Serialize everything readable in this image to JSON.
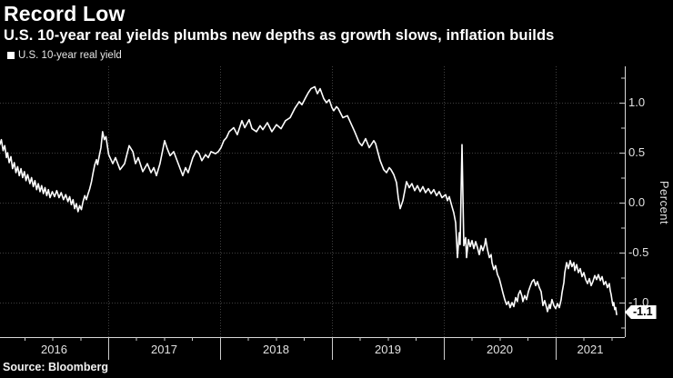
{
  "header": {
    "title": "Record Low",
    "subtitle": "U.S. 10-year real yields plumbs new depths as growth slows, inflation builds"
  },
  "legend": {
    "label": "U.S. 10-year real yield",
    "marker_color": "#ffffff"
  },
  "footer": {
    "source": "Source: Bloomberg"
  },
  "colors": {
    "background": "#000000",
    "line": "#ffffff",
    "grid": "#3f3f3f",
    "axis": "#d8d8d8",
    "tick": "#cccccc",
    "text": "#e2e2e2",
    "badge_bg": "#ffffff",
    "badge_text": "#000000"
  },
  "chart_data": {
    "type": "line",
    "title": "Record Low",
    "subtitle": "U.S. 10-year real yields plumbs new depths as growth slows, inflation builds",
    "xlabel": "",
    "ylabel": "Percent",
    "grid": "dotted",
    "legend_position": "top-left",
    "x_range": [
      2016.0325,
      2021.618
    ],
    "y_range": [
      -1.345,
      1.364
    ],
    "x_year_labels": [
      "2016",
      "2017",
      "2018",
      "2019",
      "2020",
      "2021"
    ],
    "x_year_starts": [
      2016,
      2017,
      2018,
      2019,
      2020,
      2021
    ],
    "x_gridline_years": [
      2017,
      2018,
      2019,
      2020,
      2021
    ],
    "x_minor_tick_step": 0.25,
    "y_ticks_major": [
      1.0,
      0.5,
      0.0,
      -0.5,
      -1.0
    ],
    "y_tick_labels": [
      "1.0",
      "0.5",
      "0.0",
      "-0.5",
      "-1.0"
    ],
    "y_ticks_minor": [
      1.25,
      0.75,
      0.25,
      -0.25,
      -0.75,
      -1.25
    ],
    "last_value": -1.1,
    "last_value_label": "-1.1",
    "series": [
      {
        "name": "U.S. 10-year real yield",
        "color": "#ffffff",
        "points": [
          [
            2016.0,
            0.66
          ],
          [
            2016.013,
            0.71
          ],
          [
            2016.03,
            0.58
          ],
          [
            2016.045,
            0.63
          ],
          [
            2016.06,
            0.52
          ],
          [
            2016.075,
            0.57
          ],
          [
            2016.09,
            0.45
          ],
          [
            2016.1,
            0.5
          ],
          [
            2016.115,
            0.4
          ],
          [
            2016.13,
            0.46
          ],
          [
            2016.145,
            0.34
          ],
          [
            2016.16,
            0.4
          ],
          [
            2016.175,
            0.3
          ],
          [
            2016.19,
            0.36
          ],
          [
            2016.205,
            0.27
          ],
          [
            2016.22,
            0.34
          ],
          [
            2016.235,
            0.25
          ],
          [
            2016.25,
            0.31
          ],
          [
            2016.265,
            0.22
          ],
          [
            2016.28,
            0.28
          ],
          [
            2016.3,
            0.19
          ],
          [
            2016.315,
            0.25
          ],
          [
            2016.33,
            0.16
          ],
          [
            2016.345,
            0.22
          ],
          [
            2016.36,
            0.13
          ],
          [
            2016.375,
            0.19
          ],
          [
            2016.39,
            0.11
          ],
          [
            2016.405,
            0.17
          ],
          [
            2016.42,
            0.09
          ],
          [
            2016.435,
            0.15
          ],
          [
            2016.45,
            0.07
          ],
          [
            2016.465,
            0.13
          ],
          [
            2016.48,
            0.05
          ],
          [
            2016.5,
            0.11
          ],
          [
            2016.52,
            0.06
          ],
          [
            2016.54,
            0.12
          ],
          [
            2016.56,
            0.05
          ],
          [
            2016.58,
            0.1
          ],
          [
            2016.6,
            0.03
          ],
          [
            2016.62,
            0.08
          ],
          [
            2016.64,
            0.01
          ],
          [
            2016.655,
            0.06
          ],
          [
            2016.67,
            -0.02
          ],
          [
            2016.685,
            0.03
          ],
          [
            2016.7,
            -0.06
          ],
          [
            2016.715,
            -0.01
          ],
          [
            2016.73,
            -0.09
          ],
          [
            2016.745,
            -0.03
          ],
          [
            2016.76,
            -0.07
          ],
          [
            2016.775,
            0.01
          ],
          [
            2016.79,
            0.07
          ],
          [
            2016.805,
            0.03
          ],
          [
            2016.82,
            0.09
          ],
          [
            2016.835,
            0.14
          ],
          [
            2016.85,
            0.21
          ],
          [
            2016.865,
            0.3
          ],
          [
            2016.88,
            0.38
          ],
          [
            2016.895,
            0.43
          ],
          [
            2016.905,
            0.38
          ],
          [
            2016.92,
            0.47
          ],
          [
            2016.935,
            0.55
          ],
          [
            2016.95,
            0.71
          ],
          [
            2016.965,
            0.63
          ],
          [
            2016.98,
            0.66
          ],
          [
            2017.004,
            0.48
          ],
          [
            2017.041,
            0.39
          ],
          [
            2017.065,
            0.45
          ],
          [
            2017.106,
            0.33
          ],
          [
            2017.146,
            0.39
          ],
          [
            2017.187,
            0.57
          ],
          [
            2017.22,
            0.51
          ],
          [
            2017.244,
            0.39
          ],
          [
            2017.268,
            0.45
          ],
          [
            2017.309,
            0.31
          ],
          [
            2017.35,
            0.39
          ],
          [
            2017.382,
            0.3
          ],
          [
            2017.407,
            0.35
          ],
          [
            2017.431,
            0.27
          ],
          [
            2017.463,
            0.39
          ],
          [
            2017.504,
            0.62
          ],
          [
            2017.528,
            0.54
          ],
          [
            2017.553,
            0.47
          ],
          [
            2017.585,
            0.51
          ],
          [
            2017.626,
            0.39
          ],
          [
            2017.667,
            0.27
          ],
          [
            2017.691,
            0.35
          ],
          [
            2017.715,
            0.3
          ],
          [
            2017.756,
            0.45
          ],
          [
            2017.789,
            0.52
          ],
          [
            2017.813,
            0.49
          ],
          [
            2017.837,
            0.42
          ],
          [
            2017.87,
            0.48
          ],
          [
            2017.894,
            0.45
          ],
          [
            2017.919,
            0.51
          ],
          [
            2017.959,
            0.49
          ],
          [
            2017.984,
            0.51
          ],
          [
            2018.008,
            0.55
          ],
          [
            2018.033,
            0.62
          ],
          [
            2018.057,
            0.65
          ],
          [
            2018.081,
            0.71
          ],
          [
            2018.122,
            0.75
          ],
          [
            2018.154,
            0.68
          ],
          [
            2018.195,
            0.82
          ],
          [
            2018.22,
            0.75
          ],
          [
            2018.26,
            0.83
          ],
          [
            2018.285,
            0.74
          ],
          [
            2018.325,
            0.71
          ],
          [
            2018.358,
            0.77
          ],
          [
            2018.382,
            0.73
          ],
          [
            2018.423,
            0.8
          ],
          [
            2018.463,
            0.71
          ],
          [
            2018.504,
            0.78
          ],
          [
            2018.545,
            0.74
          ],
          [
            2018.585,
            0.82
          ],
          [
            2018.626,
            0.85
          ],
          [
            2018.667,
            0.94
          ],
          [
            2018.707,
            1.01
          ],
          [
            2018.732,
            0.98
          ],
          [
            2018.764,
            1.05
          ],
          [
            2018.789,
            1.1
          ],
          [
            2018.813,
            1.14
          ],
          [
            2018.846,
            1.16
          ],
          [
            2018.87,
            1.09
          ],
          [
            2018.894,
            1.14
          ],
          [
            2018.927,
            1.04
          ],
          [
            2018.951,
            1.0
          ],
          [
            2018.976,
            1.03
          ],
          [
            2019.0,
            0.95
          ],
          [
            2019.016,
            0.92
          ],
          [
            2019.041,
            0.96
          ],
          [
            2019.057,
            0.94
          ],
          [
            2019.098,
            0.85
          ],
          [
            2019.138,
            0.87
          ],
          [
            2019.179,
            0.77
          ],
          [
            2019.203,
            0.71
          ],
          [
            2019.244,
            0.6
          ],
          [
            2019.268,
            0.57
          ],
          [
            2019.301,
            0.64
          ],
          [
            2019.333,
            0.55
          ],
          [
            2019.374,
            0.62
          ],
          [
            2019.39,
            0.59
          ],
          [
            2019.431,
            0.42
          ],
          [
            2019.463,
            0.33
          ],
          [
            2019.488,
            0.3
          ],
          [
            2019.512,
            0.35
          ],
          [
            2019.528,
            0.33
          ],
          [
            2019.553,
            0.28
          ],
          [
            2019.577,
            0.2
          ],
          [
            2019.593,
            0.05
          ],
          [
            2019.61,
            -0.06
          ],
          [
            2019.634,
            0.02
          ],
          [
            2019.667,
            0.21
          ],
          [
            2019.691,
            0.15
          ],
          [
            2019.715,
            0.19
          ],
          [
            2019.74,
            0.12
          ],
          [
            2019.764,
            0.17
          ],
          [
            2019.789,
            0.11
          ],
          [
            2019.813,
            0.16
          ],
          [
            2019.837,
            0.1
          ],
          [
            2019.862,
            0.14
          ],
          [
            2019.886,
            0.09
          ],
          [
            2019.911,
            0.13
          ],
          [
            2019.935,
            0.07
          ],
          [
            2019.959,
            0.11
          ],
          [
            2019.984,
            0.05
          ],
          [
            2020.016,
            0.08
          ],
          [
            2020.033,
            0.02
          ],
          [
            2020.049,
            0.06
          ],
          [
            2020.073,
            -0.04
          ],
          [
            2020.089,
            -0.1
          ],
          [
            2020.106,
            -0.2
          ],
          [
            2020.122,
            -0.55
          ],
          [
            2020.138,
            -0.3
          ],
          [
            2020.146,
            -0.42
          ],
          [
            2020.163,
            0.58
          ],
          [
            2020.179,
            -0.43
          ],
          [
            2020.195,
            -0.35
          ],
          [
            2020.203,
            -0.55
          ],
          [
            2020.22,
            -0.37
          ],
          [
            2020.236,
            -0.44
          ],
          [
            2020.252,
            -0.38
          ],
          [
            2020.268,
            -0.46
          ],
          [
            2020.285,
            -0.39
          ],
          [
            2020.301,
            -0.45
          ],
          [
            2020.317,
            -0.52
          ],
          [
            2020.333,
            -0.43
          ],
          [
            2020.35,
            -0.48
          ],
          [
            2020.366,
            -0.42
          ],
          [
            2020.374,
            -0.36
          ],
          [
            2020.39,
            -0.47
          ],
          [
            2020.407,
            -0.55
          ],
          [
            2020.423,
            -0.52
          ],
          [
            2020.431,
            -0.6
          ],
          [
            2020.447,
            -0.67
          ],
          [
            2020.463,
            -0.63
          ],
          [
            2020.48,
            -0.72
          ],
          [
            2020.496,
            -0.76
          ],
          [
            2020.512,
            -0.83
          ],
          [
            2020.528,
            -0.9
          ],
          [
            2020.545,
            -0.97
          ],
          [
            2020.561,
            -1.02
          ],
          [
            2020.577,
            -0.99
          ],
          [
            2020.593,
            -1.05
          ],
          [
            2020.61,
            -1.0
          ],
          [
            2020.626,
            -1.04
          ],
          [
            2020.642,
            -0.95
          ],
          [
            2020.658,
            -0.99
          ],
          [
            2020.667,
            -0.92
          ],
          [
            2020.683,
            -0.88
          ],
          [
            2020.699,
            -0.94
          ],
          [
            2020.707,
            -0.99
          ],
          [
            2020.724,
            -0.93
          ],
          [
            2020.74,
            -0.97
          ],
          [
            2020.756,
            -0.89
          ],
          [
            2020.772,
            -0.84
          ],
          [
            2020.789,
            -0.79
          ],
          [
            2020.805,
            -0.77
          ],
          [
            2020.821,
            -0.83
          ],
          [
            2020.837,
            -0.79
          ],
          [
            2020.854,
            -0.85
          ],
          [
            2020.87,
            -0.89
          ],
          [
            2020.886,
            -1.03
          ],
          [
            2020.902,
            -0.98
          ],
          [
            2020.919,
            -1.05
          ],
          [
            2020.927,
            -1.09
          ],
          [
            2020.943,
            -1.02
          ],
          [
            2020.951,
            -1.06
          ],
          [
            2020.967,
            -0.97
          ],
          [
            2020.984,
            -1.03
          ],
          [
            2021.0,
            -1.06
          ],
          [
            2021.016,
            -1.01
          ],
          [
            2021.033,
            -1.05
          ],
          [
            2021.049,
            -0.97
          ],
          [
            2021.057,
            -0.9
          ],
          [
            2021.073,
            -0.8
          ],
          [
            2021.081,
            -0.7
          ],
          [
            2021.098,
            -0.6
          ],
          [
            2021.114,
            -0.66
          ],
          [
            2021.13,
            -0.58
          ],
          [
            2021.146,
            -0.64
          ],
          [
            2021.163,
            -0.6
          ],
          [
            2021.171,
            -0.68
          ],
          [
            2021.187,
            -0.62
          ],
          [
            2021.203,
            -0.7
          ],
          [
            2021.22,
            -0.66
          ],
          [
            2021.236,
            -0.74
          ],
          [
            2021.252,
            -0.7
          ],
          [
            2021.268,
            -0.77
          ],
          [
            2021.285,
            -0.81
          ],
          [
            2021.301,
            -0.76
          ],
          [
            2021.317,
            -0.83
          ],
          [
            2021.333,
            -0.79
          ],
          [
            2021.35,
            -0.73
          ],
          [
            2021.366,
            -0.77
          ],
          [
            2021.382,
            -0.72
          ],
          [
            2021.399,
            -0.78
          ],
          [
            2021.415,
            -0.74
          ],
          [
            2021.431,
            -0.82
          ],
          [
            2021.447,
            -0.79
          ],
          [
            2021.463,
            -0.85
          ],
          [
            2021.48,
            -0.81
          ],
          [
            2021.488,
            -0.88
          ],
          [
            2021.496,
            -0.92
          ],
          [
            2021.504,
            -0.98
          ],
          [
            2021.512,
            -1.03
          ],
          [
            2021.52,
            -1.0
          ],
          [
            2021.528,
            -1.07
          ],
          [
            2021.537,
            -1.05
          ],
          [
            2021.545,
            -1.12
          ]
        ]
      }
    ]
  }
}
